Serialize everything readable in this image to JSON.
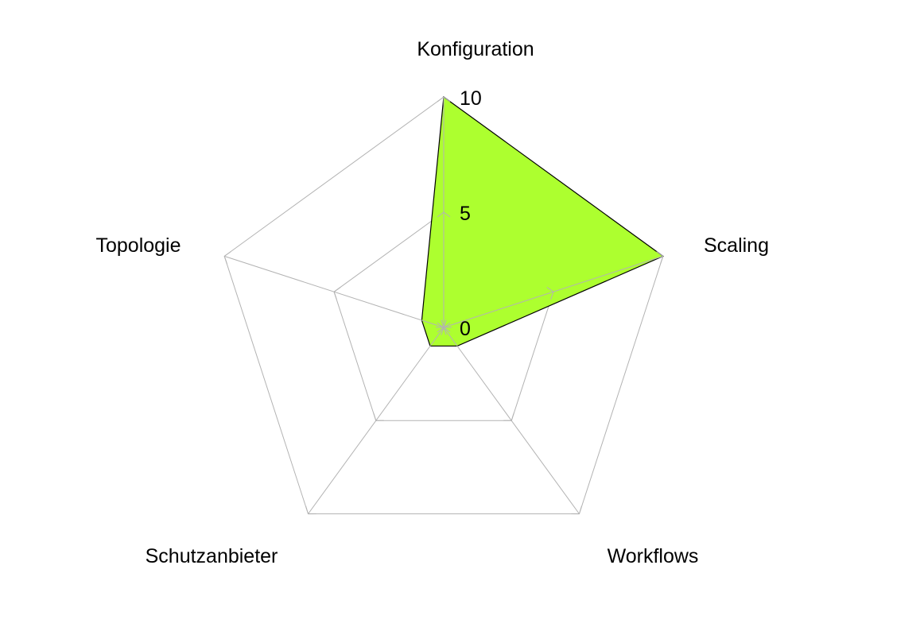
{
  "chart_data": {
    "type": "radar",
    "categories": [
      "Konfiguration",
      "Scaling",
      "Workflows",
      "Schutzanbieter",
      "Topologie"
    ],
    "values": [
      10,
      10,
      1,
      1,
      1
    ],
    "rlim": [
      0,
      10
    ],
    "rticks": [
      "0",
      "5",
      "10"
    ],
    "rtick_values": [
      0,
      5,
      10
    ],
    "grid": true,
    "legend": "none",
    "colors": {
      "fill": "#adff2f",
      "stroke": "#000000",
      "grid": "#b3b3b3"
    }
  }
}
